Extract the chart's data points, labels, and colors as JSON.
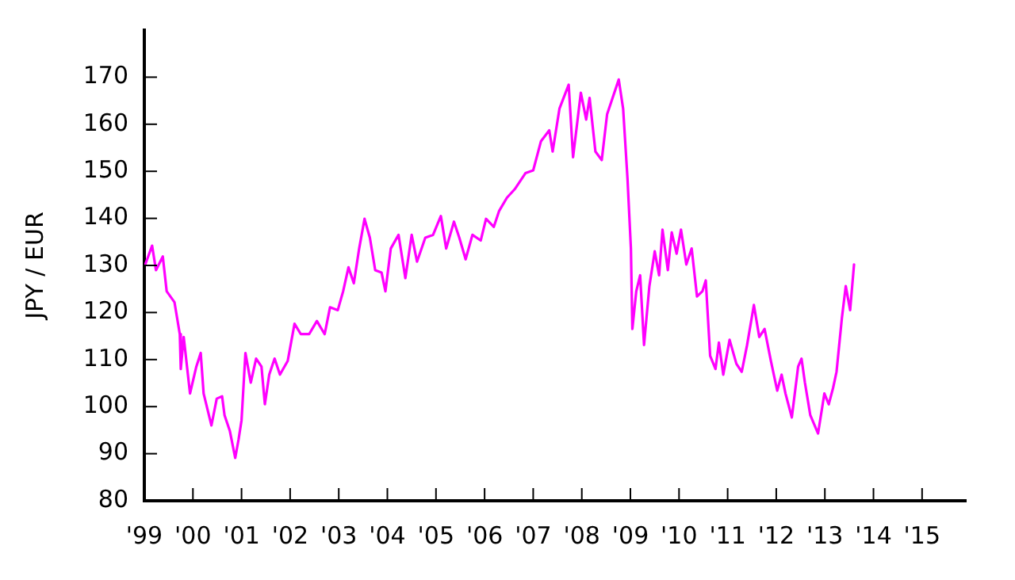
{
  "chart_data": {
    "type": "line",
    "ylabel": "JPY / EUR",
    "x": [
      1999.02,
      1999.16,
      1999.24,
      1999.38,
      1999.46,
      1999.62,
      1999.73,
      1999.75,
      1999.81,
      1999.94,
      2000.07,
      2000.16,
      2000.22,
      2000.38,
      2000.49,
      2000.6,
      2000.65,
      2000.76,
      2000.87,
      2000.94,
      2001.0,
      2001.08,
      2001.19,
      2001.3,
      2001.41,
      2001.48,
      2001.57,
      2001.68,
      2001.79,
      2001.95,
      2002.09,
      2002.22,
      2002.39,
      2002.55,
      2002.71,
      2002.82,
      2002.98,
      2003.09,
      2003.2,
      2003.31,
      2003.42,
      2003.53,
      2003.64,
      2003.75,
      2003.88,
      2003.96,
      2004.07,
      2004.23,
      2004.37,
      2004.5,
      2004.61,
      2004.78,
      2004.94,
      2005.1,
      2005.21,
      2005.37,
      2005.48,
      2005.61,
      2005.75,
      2005.92,
      2006.03,
      2006.19,
      2006.3,
      2006.46,
      2006.62,
      2006.84,
      2007.0,
      2007.16,
      2007.33,
      2007.4,
      2007.54,
      2007.73,
      2007.82,
      2007.98,
      2008.09,
      2008.16,
      2008.28,
      2008.41,
      2008.52,
      2008.76,
      2008.85,
      2008.94,
      2009.01,
      2009.04,
      2009.12,
      2009.2,
      2009.28,
      2009.39,
      2009.5,
      2009.59,
      2009.66,
      2009.77,
      2009.85,
      2009.95,
      2010.04,
      2010.15,
      2010.26,
      2010.37,
      2010.48,
      2010.55,
      2010.64,
      2010.75,
      2010.82,
      2010.91,
      2011.04,
      2011.18,
      2011.29,
      2011.4,
      2011.54,
      2011.65,
      2011.76,
      2011.89,
      2012.02,
      2012.11,
      2012.19,
      2012.32,
      2012.45,
      2012.52,
      2012.59,
      2012.7,
      2012.86,
      2012.99,
      2013.08,
      2013.17,
      2013.24,
      2013.35,
      2013.43,
      2013.52,
      2013.6
    ],
    "series": [
      {
        "color": "#ff00ff",
        "values": [
          130.2,
          134.2,
          129,
          131.9,
          124.5,
          122.2,
          115.4,
          108,
          114.8,
          102.8,
          108.5,
          111.4,
          102.8,
          96,
          101.7,
          102.2,
          98.2,
          94.8,
          89.1,
          93.1,
          97.1,
          111.4,
          105.1,
          110.2,
          108.5,
          100.5,
          106.8,
          110.2,
          106.8,
          109.7,
          117.6,
          115.4,
          115.4,
          118.2,
          115.4,
          121.1,
          120.5,
          124.5,
          129.6,
          126.2,
          133.6,
          139.9,
          135.9,
          129,
          128.5,
          124.5,
          133.6,
          136.5,
          127.3,
          136.5,
          130.8,
          135.9,
          136.5,
          140.5,
          133.6,
          139.3,
          135.9,
          131.3,
          136.5,
          135.3,
          139.9,
          138.2,
          141.6,
          144.4,
          146.2,
          149.6,
          150.2,
          156.4,
          158.7,
          154.2,
          163.3,
          168.4,
          153,
          166.7,
          161,
          165.6,
          154.2,
          152.4,
          162.1,
          169.5,
          163.3,
          148.4,
          133.6,
          116.5,
          124.5,
          127.9,
          113.1,
          125.6,
          133,
          127.9,
          137.6,
          129,
          137,
          132.5,
          137.6,
          130.2,
          133.6,
          123.4,
          124.5,
          126.8,
          110.8,
          108,
          113.6,
          106.8,
          114.2,
          109.1,
          107.4,
          113.1,
          121.6,
          114.8,
          116.5,
          109.7,
          103.4,
          106.8,
          102.8,
          97.7,
          108.5,
          110.2,
          105.1,
          98.2,
          94.3,
          102.8,
          100.5,
          104,
          107.4,
          118.8,
          125.6,
          120.5,
          130.2
        ]
      }
    ],
    "xlim": [
      1999,
      2015.9
    ],
    "xticks": [
      {
        "value": 1999,
        "label": "'99"
      },
      {
        "value": 2000,
        "label": "'00"
      },
      {
        "value": 2001,
        "label": "'01"
      },
      {
        "value": 2002,
        "label": "'02"
      },
      {
        "value": 2003,
        "label": "'03"
      },
      {
        "value": 2004,
        "label": "'04"
      },
      {
        "value": 2005,
        "label": "'05"
      },
      {
        "value": 2006,
        "label": "'06"
      },
      {
        "value": 2007,
        "label": "'07"
      },
      {
        "value": 2008,
        "label": "'08"
      },
      {
        "value": 2009,
        "label": "'09"
      },
      {
        "value": 2010,
        "label": "'10"
      },
      {
        "value": 2011,
        "label": "'11"
      },
      {
        "value": 2012,
        "label": "'12"
      },
      {
        "value": 2013,
        "label": "'13"
      },
      {
        "value": 2014,
        "label": "'14"
      },
      {
        "value": 2015,
        "label": "'15"
      }
    ],
    "ylim": [
      80,
      180
    ],
    "yticks": [
      80,
      90,
      100,
      110,
      120,
      130,
      140,
      150,
      160,
      170
    ],
    "grid": false,
    "legend": false,
    "marker": "none",
    "line_style": "solid"
  }
}
